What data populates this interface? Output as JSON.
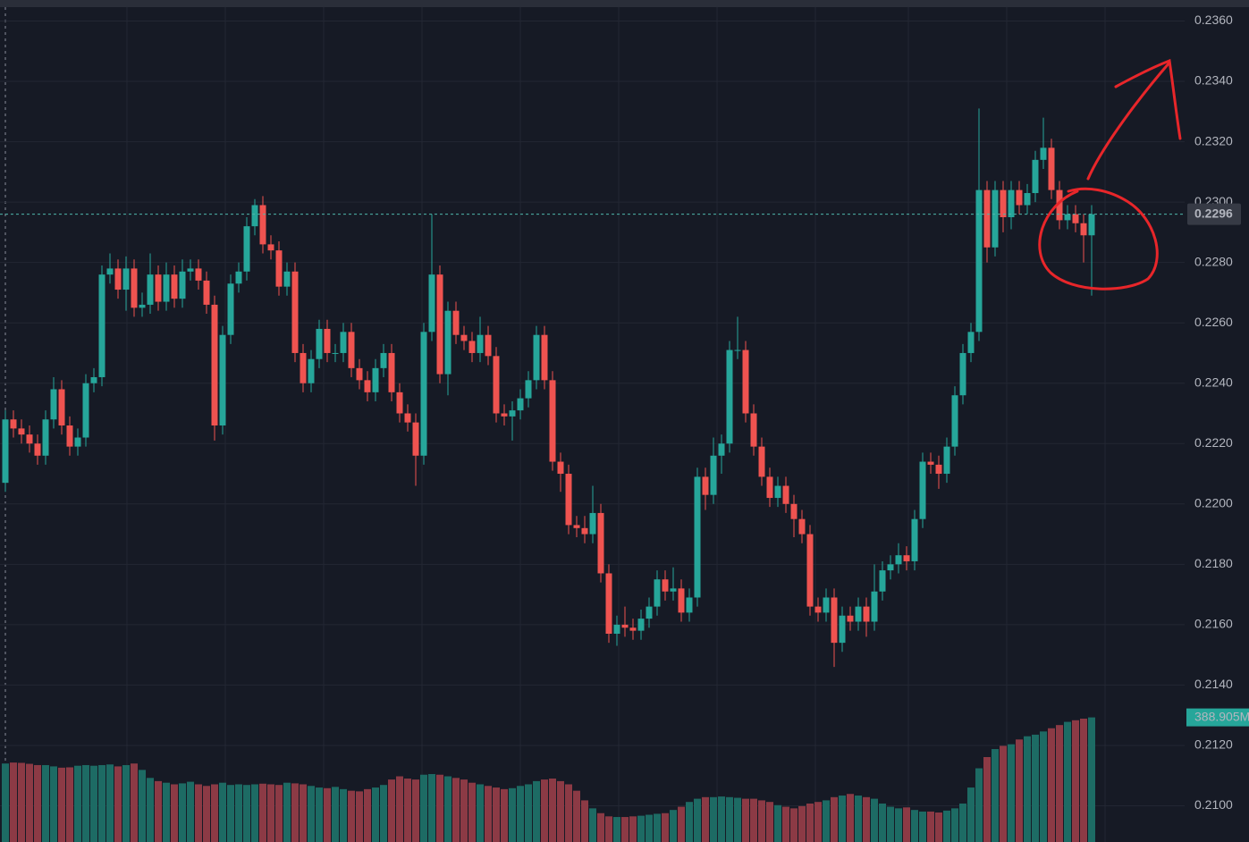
{
  "chart_data": {
    "type": "candlestick",
    "ylim": [
      0.2088,
      0.2364
    ],
    "yticks": [
      {
        "value": 0.21,
        "label": "0.2100"
      },
      {
        "value": 0.212,
        "label": "0.2120"
      },
      {
        "value": 0.214,
        "label": "0.2140"
      },
      {
        "value": 0.216,
        "label": "0.2160"
      },
      {
        "value": 0.218,
        "label": "0.2180"
      },
      {
        "value": 0.22,
        "label": "0.2200"
      },
      {
        "value": 0.222,
        "label": "0.2220"
      },
      {
        "value": 0.224,
        "label": "0.2240"
      },
      {
        "value": 0.226,
        "label": "0.2260"
      },
      {
        "value": 0.228,
        "label": "0.2280"
      },
      {
        "value": 0.23,
        "label": "0.2300"
      },
      {
        "value": 0.232,
        "label": "0.2320"
      },
      {
        "value": 0.234,
        "label": "0.2340"
      },
      {
        "value": 0.236,
        "label": "0.2360"
      }
    ],
    "grid": true,
    "up_color": "#26a69a",
    "down_color": "#ef5350",
    "volume_up_color": "#1d6b64",
    "volume_down_color": "#8c3a45",
    "open": [
      0.2207,
      0.2228,
      0.2225,
      0.2223,
      0.222,
      0.2216,
      0.2228,
      0.2238,
      0.2226,
      0.2219,
      0.2222,
      0.224,
      0.2242,
      0.2276,
      0.2278,
      0.2271,
      0.2278,
      0.2265,
      0.2266,
      0.2276,
      0.2267,
      0.2276,
      0.2268,
      0.2277,
      0.2278,
      0.2274,
      0.2266,
      0.2226,
      0.2256,
      0.2273,
      0.2277,
      0.2292,
      0.2299,
      0.2286,
      0.2284,
      0.2272,
      0.2277,
      0.225,
      0.224,
      0.2248,
      0.2258,
      0.225,
      0.225,
      0.2257,
      0.2245,
      0.2241,
      0.2237,
      0.2245,
      0.225,
      0.2237,
      0.223,
      0.2227,
      0.2216,
      0.2257,
      0.2276,
      0.2243,
      0.2264,
      0.2256,
      0.2254,
      0.225,
      0.2256,
      0.2249,
      0.223,
      0.2229,
      0.2231,
      0.2235,
      0.2241,
      0.2256,
      0.2241,
      0.2214,
      0.221,
      0.2193,
      0.2192,
      0.219,
      0.2197,
      0.2177,
      0.2157,
      0.216,
      0.2159,
      0.2158,
      0.2162,
      0.2166,
      0.2175,
      0.2171,
      0.2172,
      0.2164,
      0.2169,
      0.2209,
      0.2203,
      0.2216,
      0.222,
      0.2251,
      0.2251,
      0.223,
      0.2219,
      0.2209,
      0.2202,
      0.2206,
      0.22,
      0.2195,
      0.219,
      0.2166,
      0.2164,
      0.2169,
      0.2154,
      0.2163,
      0.2161,
      0.2166,
      0.2161,
      0.2171,
      0.2178,
      0.218,
      0.2183,
      0.2181,
      0.2195,
      0.2214,
      0.2213,
      0.221,
      0.2219,
      0.2236,
      0.225,
      0.2257,
      0.2304,
      0.2285,
      0.2304,
      0.2295,
      0.2304,
      0.2299,
      0.2303,
      0.2314,
      0.2318,
      0.2304,
      0.2294,
      0.2296,
      0.2293,
      0.2289
    ],
    "high": [
      0.2231,
      0.2231,
      0.2228,
      0.2226,
      0.2223,
      0.2231,
      0.2242,
      0.2241,
      0.2229,
      0.2225,
      0.2243,
      0.2245,
      0.2279,
      0.2283,
      0.2281,
      0.2282,
      0.2281,
      0.227,
      0.2283,
      0.2279,
      0.228,
      0.2279,
      0.2281,
      0.2281,
      0.2281,
      0.2277,
      0.2269,
      0.2259,
      0.2276,
      0.228,
      0.2295,
      0.2301,
      0.2302,
      0.2289,
      0.2287,
      0.228,
      0.228,
      0.2253,
      0.2251,
      0.2261,
      0.2261,
      0.2253,
      0.226,
      0.226,
      0.2248,
      0.2244,
      0.2248,
      0.2253,
      0.2253,
      0.224,
      0.2233,
      0.223,
      0.226,
      0.2296,
      0.2279,
      0.2267,
      0.2267,
      0.2259,
      0.2257,
      0.2262,
      0.2259,
      0.2252,
      0.2233,
      0.2234,
      0.2238,
      0.2244,
      0.2259,
      0.2259,
      0.2244,
      0.2217,
      0.2213,
      0.2196,
      0.2196,
      0.2206,
      0.22,
      0.218,
      0.2163,
      0.2166,
      0.2162,
      0.2165,
      0.2169,
      0.2178,
      0.2178,
      0.2179,
      0.2175,
      0.2172,
      0.2212,
      0.2212,
      0.2222,
      0.2223,
      0.2254,
      0.2262,
      0.2254,
      0.2233,
      0.2222,
      0.2212,
      0.2209,
      0.2209,
      0.2203,
      0.2198,
      0.2193,
      0.2169,
      0.2172,
      0.2172,
      0.2166,
      0.2166,
      0.2169,
      0.2169,
      0.218,
      0.2181,
      0.2183,
      0.2187,
      0.2186,
      0.2198,
      0.2217,
      0.2217,
      0.2216,
      0.2222,
      0.2239,
      0.2253,
      0.226,
      0.2331,
      0.2307,
      0.2307,
      0.2307,
      0.2307,
      0.2307,
      0.2306,
      0.2317,
      0.2328,
      0.2321,
      0.2307,
      0.2299,
      0.2299,
      0.2296,
      0.2299
    ],
    "low": [
      0.2204,
      0.2222,
      0.222,
      0.2217,
      0.2213,
      0.2213,
      0.2225,
      0.2223,
      0.2216,
      0.2216,
      0.2219,
      0.2237,
      0.2239,
      0.2273,
      0.2268,
      0.2264,
      0.2262,
      0.2262,
      0.2263,
      0.2264,
      0.2264,
      0.2265,
      0.2265,
      0.2274,
      0.2271,
      0.2263,
      0.2221,
      0.2223,
      0.2253,
      0.227,
      0.2274,
      0.2289,
      0.2283,
      0.2281,
      0.2269,
      0.2269,
      0.2247,
      0.2237,
      0.2237,
      0.2245,
      0.2247,
      0.2247,
      0.2247,
      0.2242,
      0.2238,
      0.2234,
      0.2234,
      0.2242,
      0.2234,
      0.2227,
      0.2224,
      0.2206,
      0.2213,
      0.2254,
      0.224,
      0.2236,
      0.2253,
      0.2251,
      0.2247,
      0.2247,
      0.2246,
      0.2227,
      0.2226,
      0.2221,
      0.2228,
      0.2232,
      0.2238,
      0.2238,
      0.2211,
      0.2204,
      0.219,
      0.2189,
      0.2187,
      0.2187,
      0.2174,
      0.2154,
      0.2153,
      0.2156,
      0.2155,
      0.2155,
      0.2159,
      0.2163,
      0.2168,
      0.2168,
      0.2161,
      0.2161,
      0.2166,
      0.2198,
      0.22,
      0.221,
      0.2217,
      0.2248,
      0.2227,
      0.2216,
      0.2206,
      0.2199,
      0.2199,
      0.2197,
      0.2189,
      0.2187,
      0.2163,
      0.2161,
      0.2161,
      0.2146,
      0.2151,
      0.2158,
      0.2158,
      0.2156,
      0.2158,
      0.2168,
      0.2175,
      0.2177,
      0.2178,
      0.2178,
      0.2192,
      0.221,
      0.2205,
      0.2207,
      0.2216,
      0.2233,
      0.2247,
      0.2254,
      0.228,
      0.2282,
      0.229,
      0.2291,
      0.2296,
      0.2296,
      0.23,
      0.2311,
      0.2301,
      0.2291,
      0.2291,
      0.229,
      0.228,
      0.2269
    ],
    "close": [
      0.2228,
      0.2225,
      0.2223,
      0.222,
      0.2216,
      0.2228,
      0.2238,
      0.2226,
      0.2219,
      0.2222,
      0.224,
      0.2242,
      0.2276,
      0.2278,
      0.2271,
      0.2278,
      0.2265,
      0.2266,
      0.2276,
      0.2267,
      0.2276,
      0.2268,
      0.2277,
      0.2278,
      0.2274,
      0.2266,
      0.2226,
      0.2256,
      0.2273,
      0.2277,
      0.2292,
      0.2299,
      0.2286,
      0.2284,
      0.2272,
      0.2277,
      0.225,
      0.224,
      0.2248,
      0.2258,
      0.225,
      0.225,
      0.2257,
      0.2245,
      0.2241,
      0.2237,
      0.2245,
      0.225,
      0.2237,
      0.223,
      0.2227,
      0.2216,
      0.2257,
      0.2276,
      0.2243,
      0.2264,
      0.2256,
      0.2254,
      0.225,
      0.2256,
      0.2249,
      0.223,
      0.2229,
      0.2231,
      0.2235,
      0.2241,
      0.2256,
      0.2241,
      0.2214,
      0.221,
      0.2193,
      0.2192,
      0.219,
      0.2197,
      0.2177,
      0.2157,
      0.216,
      0.2159,
      0.2158,
      0.2162,
      0.2166,
      0.2175,
      0.2171,
      0.2172,
      0.2164,
      0.2169,
      0.2209,
      0.2203,
      0.2216,
      0.222,
      0.2251,
      0.2251,
      0.223,
      0.2219,
      0.2209,
      0.2202,
      0.2206,
      0.22,
      0.2195,
      0.219,
      0.2166,
      0.2164,
      0.2169,
      0.2154,
      0.2163,
      0.2161,
      0.2166,
      0.2161,
      0.2171,
      0.2178,
      0.218,
      0.2183,
      0.2181,
      0.2195,
      0.2214,
      0.2213,
      0.221,
      0.2219,
      0.2236,
      0.225,
      0.2257,
      0.2304,
      0.2285,
      0.2304,
      0.2295,
      0.2304,
      0.2299,
      0.2303,
      0.2314,
      0.2318,
      0.2304,
      0.2294,
      0.2296,
      0.2293,
      0.2289,
      0.2296
    ],
    "volume": [
      245,
      248,
      247,
      244,
      240,
      240,
      236,
      232,
      233,
      238,
      240,
      238,
      240,
      242,
      236,
      240,
      245,
      225,
      200,
      190,
      185,
      180,
      183,
      188,
      180,
      175,
      180,
      185,
      178,
      180,
      178,
      180,
      182,
      180,
      178,
      185,
      183,
      180,
      175,
      170,
      168,
      172,
      165,
      160,
      158,
      165,
      170,
      178,
      195,
      205,
      198,
      195,
      210,
      212,
      210,
      205,
      200,
      195,
      185,
      180,
      175,
      170,
      165,
      168,
      175,
      180,
      190,
      195,
      198,
      190,
      180,
      160,
      130,
      105,
      90,
      80,
      78,
      78,
      80,
      82,
      85,
      88,
      90,
      100,
      110,
      125,
      135,
      140,
      140,
      142,
      140,
      138,
      135,
      135,
      130,
      125,
      115,
      110,
      105,
      112,
      120,
      125,
      130,
      140,
      145,
      150,
      145,
      140,
      135,
      120,
      110,
      105,
      108,
      100,
      95,
      95,
      92,
      98,
      105,
      120,
      170,
      230,
      265,
      290,
      300,
      305,
      320,
      330,
      335,
      345,
      355,
      365,
      375,
      380,
      385,
      388.905
    ],
    "volume_ylim": [
      0,
      2600
    ],
    "last_price": 0.2296,
    "last_volume": {
      "value": 388.905,
      "label": "388.905M"
    }
  }
}
